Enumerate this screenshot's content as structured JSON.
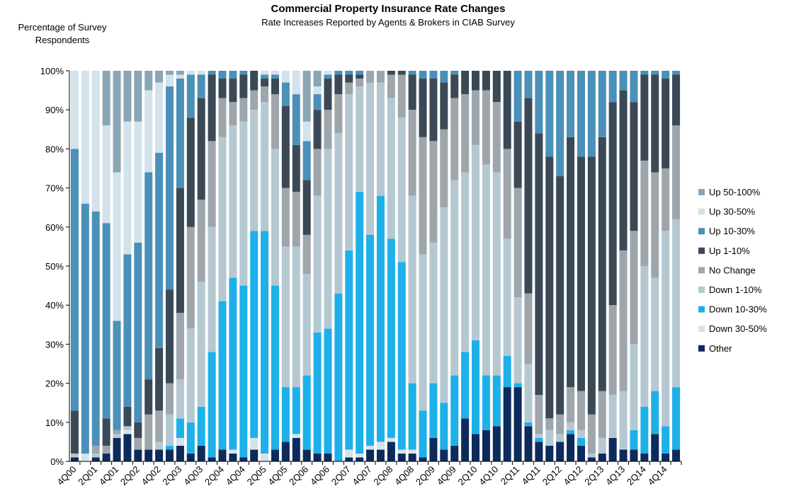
{
  "chart_data": {
    "type": "stacked_bar",
    "title": "Commercial Property Insurance Rate Changes",
    "subtitle": "Rate Increases Reported by Agents & Brokers in CIAB Survey",
    "ylabel": "Percentage of Survey Respondents",
    "categories": [
      "4Q00",
      null,
      "2Q01",
      null,
      "4Q01",
      null,
      "2Q02",
      null,
      "4Q02",
      null,
      "2Q03",
      null,
      "4Q03",
      null,
      "2Q04",
      null,
      "4Q04",
      null,
      "2Q05",
      null,
      "4Q05",
      null,
      "2Q06",
      null,
      "4Q06",
      null,
      "2Q07",
      null,
      "4Q07",
      null,
      "2Q08",
      null,
      "4Q08",
      null,
      "2Q09",
      null,
      "4Q09",
      null,
      "2Q10",
      null,
      "4Q10",
      null,
      "2Q11",
      null,
      "4Q11",
      null,
      "2Q12",
      null,
      "4Q12",
      null,
      "2Q13",
      null,
      "4Q13",
      null,
      "2Q14",
      null,
      "4Q14",
      null
    ],
    "ylim": [
      0,
      100
    ],
    "yticks": [
      {
        "value": 0,
        "label": "0%"
      },
      {
        "value": 10,
        "label": "10%"
      },
      {
        "value": 20,
        "label": "20%"
      },
      {
        "value": 30,
        "label": "30%"
      },
      {
        "value": 40,
        "label": "40%"
      },
      {
        "value": 50,
        "label": "50%"
      },
      {
        "value": 60,
        "label": "60%"
      },
      {
        "value": 70,
        "label": "70%"
      },
      {
        "value": 80,
        "label": "80%"
      },
      {
        "value": 90,
        "label": "90%"
      },
      {
        "value": 100,
        "label": "100%"
      }
    ],
    "legend": "right",
    "series": [
      {
        "name": "Other",
        "color": "#0d2a5c",
        "values": [
          1,
          0,
          1,
          2,
          6,
          7,
          3,
          3,
          3,
          3,
          4,
          2,
          4,
          1,
          3,
          2,
          1,
          3,
          0,
          3,
          5,
          6,
          3,
          2,
          2,
          0,
          1,
          1,
          3,
          3,
          5,
          2,
          2,
          1,
          6,
          3,
          4,
          11,
          7,
          8,
          9,
          19,
          19,
          9,
          5,
          4,
          5,
          7,
          4,
          1,
          2,
          6,
          3,
          3,
          2,
          7,
          2,
          3
        ]
      },
      {
        "name": "Down 30-50%",
        "color": "#d6e3ec",
        "values": [
          0,
          2,
          0,
          0,
          0,
          1,
          0,
          0,
          0,
          0,
          2,
          0,
          0,
          0,
          0,
          1,
          0,
          3,
          2,
          0,
          0,
          1,
          0,
          0,
          0,
          0,
          2,
          1,
          1,
          2,
          1,
          1,
          1,
          0,
          0,
          0,
          0,
          0,
          0,
          0,
          0,
          0,
          0,
          0,
          0,
          0,
          0,
          0,
          0,
          0,
          0,
          0,
          0,
          0,
          0,
          0,
          0,
          0
        ]
      },
      {
        "name": "Down 10-30%",
        "color": "#1eb0e8",
        "values": [
          0,
          0,
          0,
          0,
          0,
          0,
          0,
          0,
          0,
          1,
          5,
          8,
          10,
          27,
          38,
          44,
          44,
          53,
          57,
          42,
          14,
          12,
          19,
          31,
          32,
          43,
          51,
          67,
          54,
          63,
          51,
          48,
          17,
          12,
          14,
          12,
          18,
          17,
          24,
          14,
          13,
          8,
          1,
          1,
          1,
          0,
          0,
          1,
          2,
          0,
          0,
          0,
          0,
          5,
          12,
          11,
          7,
          16
        ]
      },
      {
        "name": "Down 1-10%",
        "color": "#b5c8d2",
        "values": [
          1,
          0,
          1,
          0,
          1,
          1,
          0,
          0,
          2,
          8,
          10,
          24,
          32,
          32,
          42,
          39,
          42,
          31,
          33,
          35,
          36,
          36,
          26,
          35,
          46,
          41,
          40,
          27,
          39,
          29,
          36,
          37,
          48,
          40,
          36,
          50,
          50,
          46,
          50,
          54,
          52,
          30,
          22,
          15,
          1,
          4,
          2,
          2,
          2,
          1,
          4,
          11,
          15,
          22,
          36,
          29,
          50,
          43
        ]
      },
      {
        "name": "No Change",
        "color": "#9ea6ac",
        "values": [
          0,
          0,
          2,
          2,
          1,
          0,
          3,
          9,
          8,
          8,
          17,
          26,
          21,
          22,
          10,
          6,
          6,
          5,
          4,
          14,
          15,
          14,
          10,
          12,
          10,
          10,
          3,
          2,
          3,
          3,
          6,
          11,
          22,
          30,
          26,
          20,
          21,
          20,
          14,
          19,
          18,
          23,
          28,
          18,
          10,
          3,
          5,
          9,
          10,
          10,
          12,
          23,
          36,
          29,
          27,
          27,
          16,
          24
        ]
      },
      {
        "name": "Up 1-10%",
        "color": "#3b4957",
        "values": [
          11,
          0,
          0,
          7,
          0,
          5,
          4,
          9,
          16,
          24,
          32,
          28,
          26,
          17,
          5,
          6,
          6,
          5,
          2,
          4,
          21,
          12,
          14,
          10,
          8,
          5,
          2,
          1,
          0,
          0,
          1,
          1,
          9,
          15,
          16,
          12,
          6,
          6,
          5,
          5,
          8,
          20,
          17,
          50,
          67,
          67,
          61,
          64,
          60,
          66,
          65,
          52,
          41,
          33,
          22,
          25,
          23,
          13
        ]
      },
      {
        "name": "Up 10-30%",
        "color": "#4b90b8",
        "values": [
          67,
          64,
          60,
          50,
          28,
          39,
          46,
          53,
          50,
          52,
          28,
          11,
          6,
          1,
          2,
          2,
          1,
          0,
          1,
          1,
          6,
          13,
          10,
          4,
          1,
          1,
          1,
          1,
          0,
          0,
          0,
          0,
          1,
          2,
          2,
          3,
          1,
          0,
          0,
          0,
          0,
          0,
          13,
          7,
          16,
          22,
          27,
          17,
          22,
          22,
          17,
          8,
          5,
          8,
          1,
          1,
          2,
          1
        ]
      },
      {
        "name": "Up 30-50%",
        "color": "#d3e2eb",
        "values": [
          20,
          34,
          36,
          25,
          38,
          34,
          31,
          21,
          18,
          3,
          1,
          1,
          1,
          0,
          0,
          0,
          0,
          0,
          1,
          1,
          3,
          6,
          5,
          2,
          1,
          0,
          0,
          0,
          0,
          0,
          0,
          0,
          0,
          0,
          0,
          0,
          0,
          0,
          0,
          0,
          0,
          0,
          0,
          0,
          0,
          0,
          0,
          0,
          0,
          0,
          0,
          0,
          0,
          0,
          0,
          0,
          0,
          0
        ]
      },
      {
        "name": "Up 50-100%",
        "color": "#8aa5b6",
        "values": [
          0,
          0,
          0,
          14,
          26,
          13,
          13,
          5,
          3,
          1,
          1,
          0,
          0,
          0,
          0,
          0,
          0,
          0,
          0,
          0,
          0,
          0,
          13,
          4,
          0,
          0,
          0,
          0,
          0,
          0,
          0,
          0,
          0,
          0,
          0,
          0,
          0,
          0,
          0,
          0,
          0,
          0,
          0,
          0,
          0,
          0,
          0,
          0,
          0,
          0,
          0,
          0,
          0,
          0,
          0,
          0,
          0,
          0
        ]
      }
    ]
  }
}
